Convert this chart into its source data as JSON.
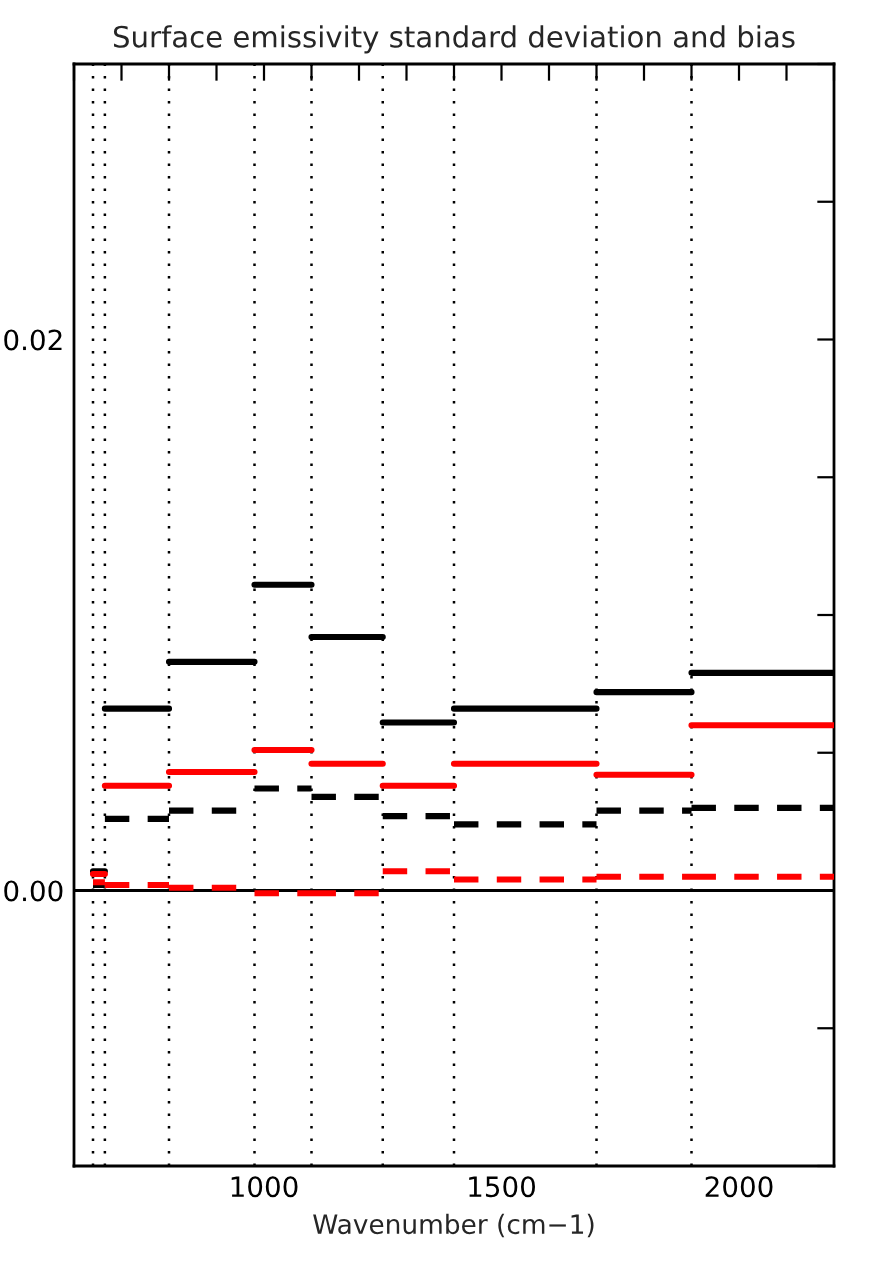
{
  "chart_data": {
    "type": "line",
    "title": "Surface emissivity standard deviation and bias",
    "xlabel": "Wavenumber (cm−1)",
    "xlim": [
      600,
      2200
    ],
    "ylim": [
      -0.01,
      0.03
    ],
    "xticks": [
      {
        "value": 600,
        "label": null
      },
      {
        "value": 700,
        "label": null
      },
      {
        "value": 800,
        "label": null
      },
      {
        "value": 900,
        "label": null
      },
      1000,
      {
        "value": 1100,
        "label": null
      },
      {
        "value": 1200,
        "label": null
      },
      {
        "value": 1300,
        "label": null
      },
      {
        "value": 1400,
        "label": null
      },
      1500,
      {
        "value": 1600,
        "label": null
      },
      {
        "value": 1700,
        "label": null
      },
      {
        "value": 1800,
        "label": null
      },
      {
        "value": 1900,
        "label": null
      },
      2000,
      {
        "value": 2100,
        "label": null
      },
      {
        "value": 2200,
        "label": null
      }
    ],
    "yticks": [
      {
        "value": -0.01,
        "label": null
      },
      {
        "value": -0.005,
        "label": null
      },
      {
        "value": 0,
        "label": "0.00"
      },
      {
        "value": 0.005,
        "label": null
      },
      {
        "value": 0.01,
        "label": null
      },
      {
        "value": 0.015,
        "label": null
      },
      {
        "value": 0.02,
        "label": "0.02"
      },
      {
        "value": 0.025,
        "label": null
      },
      {
        "value": 0.03,
        "label": null
      }
    ],
    "grid": false,
    "legend": false,
    "marker": "none",
    "series": [
      {
        "color": "#000000",
        "line_style": "solid",
        "x": [
          640,
          665,
          665,
          800,
          800,
          980,
          980,
          1100,
          1100,
          1250,
          1250,
          1400,
          1400,
          1700,
          1700,
          1900,
          1900,
          2200
        ],
        "values": [
          0.0007,
          0.0007,
          0.0066,
          0.0066,
          0.0083,
          0.0083,
          0.0111,
          0.0111,
          0.0092,
          0.0092,
          0.0061,
          0.0061,
          0.0066,
          0.0066,
          0.0072,
          0.0072,
          0.0079,
          0.0079
        ]
      },
      {
        "color": "#ff0000",
        "line_style": "solid",
        "x": [
          640,
          665,
          665,
          800,
          800,
          980,
          980,
          1100,
          1100,
          1250,
          1250,
          1400,
          1400,
          1700,
          1700,
          1900,
          1900,
          2200
        ],
        "values": [
          0.0006,
          0.0006,
          0.0038,
          0.0038,
          0.0043,
          0.0043,
          0.0051,
          0.0051,
          0.0046,
          0.0046,
          0.0038,
          0.0038,
          0.0046,
          0.0046,
          0.0042,
          0.0042,
          0.006,
          0.006
        ]
      },
      {
        "color": "#000000",
        "line_style": "dashed",
        "x": [
          640,
          665,
          665,
          800,
          800,
          980,
          980,
          1100,
          1100,
          1250,
          1250,
          1400,
          1400,
          1700,
          1700,
          1900,
          1900,
          2200
        ],
        "values": [
          0.0002,
          0.0002,
          0.0026,
          0.0026,
          0.0029,
          0.0029,
          0.0037,
          0.0037,
          0.0034,
          0.0034,
          0.0027,
          0.0027,
          0.0024,
          0.0024,
          0.0029,
          0.0029,
          0.003,
          0.003
        ]
      },
      {
        "color": "#ff0000",
        "line_style": "dashed",
        "x": [
          640,
          665,
          665,
          800,
          800,
          980,
          980,
          1100,
          1100,
          1250,
          1250,
          1400,
          1400,
          1700,
          1700,
          1900,
          1900,
          2200
        ],
        "values": [
          0.0003,
          0.0003,
          0.0002,
          0.0002,
          0.0001,
          0.0001,
          -0.0001,
          -0.0001,
          -0.0001,
          -0.0001,
          0.0007,
          0.0007,
          0.0004,
          0.0004,
          0.0005,
          0.0005,
          0.0005,
          0.0005
        ]
      }
    ],
    "ref_lines": [
      {
        "axis": "y",
        "value": 0,
        "color": "#000000",
        "line_style": "solid"
      },
      {
        "axis": "x",
        "value": 640,
        "color": "#000000",
        "line_style": "dotted"
      },
      {
        "axis": "x",
        "value": 665,
        "color": "#000000",
        "line_style": "dotted"
      },
      {
        "axis": "x",
        "value": 800,
        "color": "#000000",
        "line_style": "dotted"
      },
      {
        "axis": "x",
        "value": 980,
        "color": "#000000",
        "line_style": "dotted"
      },
      {
        "axis": "x",
        "value": 1100,
        "color": "#000000",
        "line_style": "dotted"
      },
      {
        "axis": "x",
        "value": 1250,
        "color": "#000000",
        "line_style": "dotted"
      },
      {
        "axis": "x",
        "value": 1400,
        "color": "#000000",
        "line_style": "dotted"
      },
      {
        "axis": "x",
        "value": 1700,
        "color": "#000000",
        "line_style": "dotted"
      },
      {
        "axis": "x",
        "value": 1900,
        "color": "#000000",
        "line_style": "dotted"
      }
    ]
  }
}
